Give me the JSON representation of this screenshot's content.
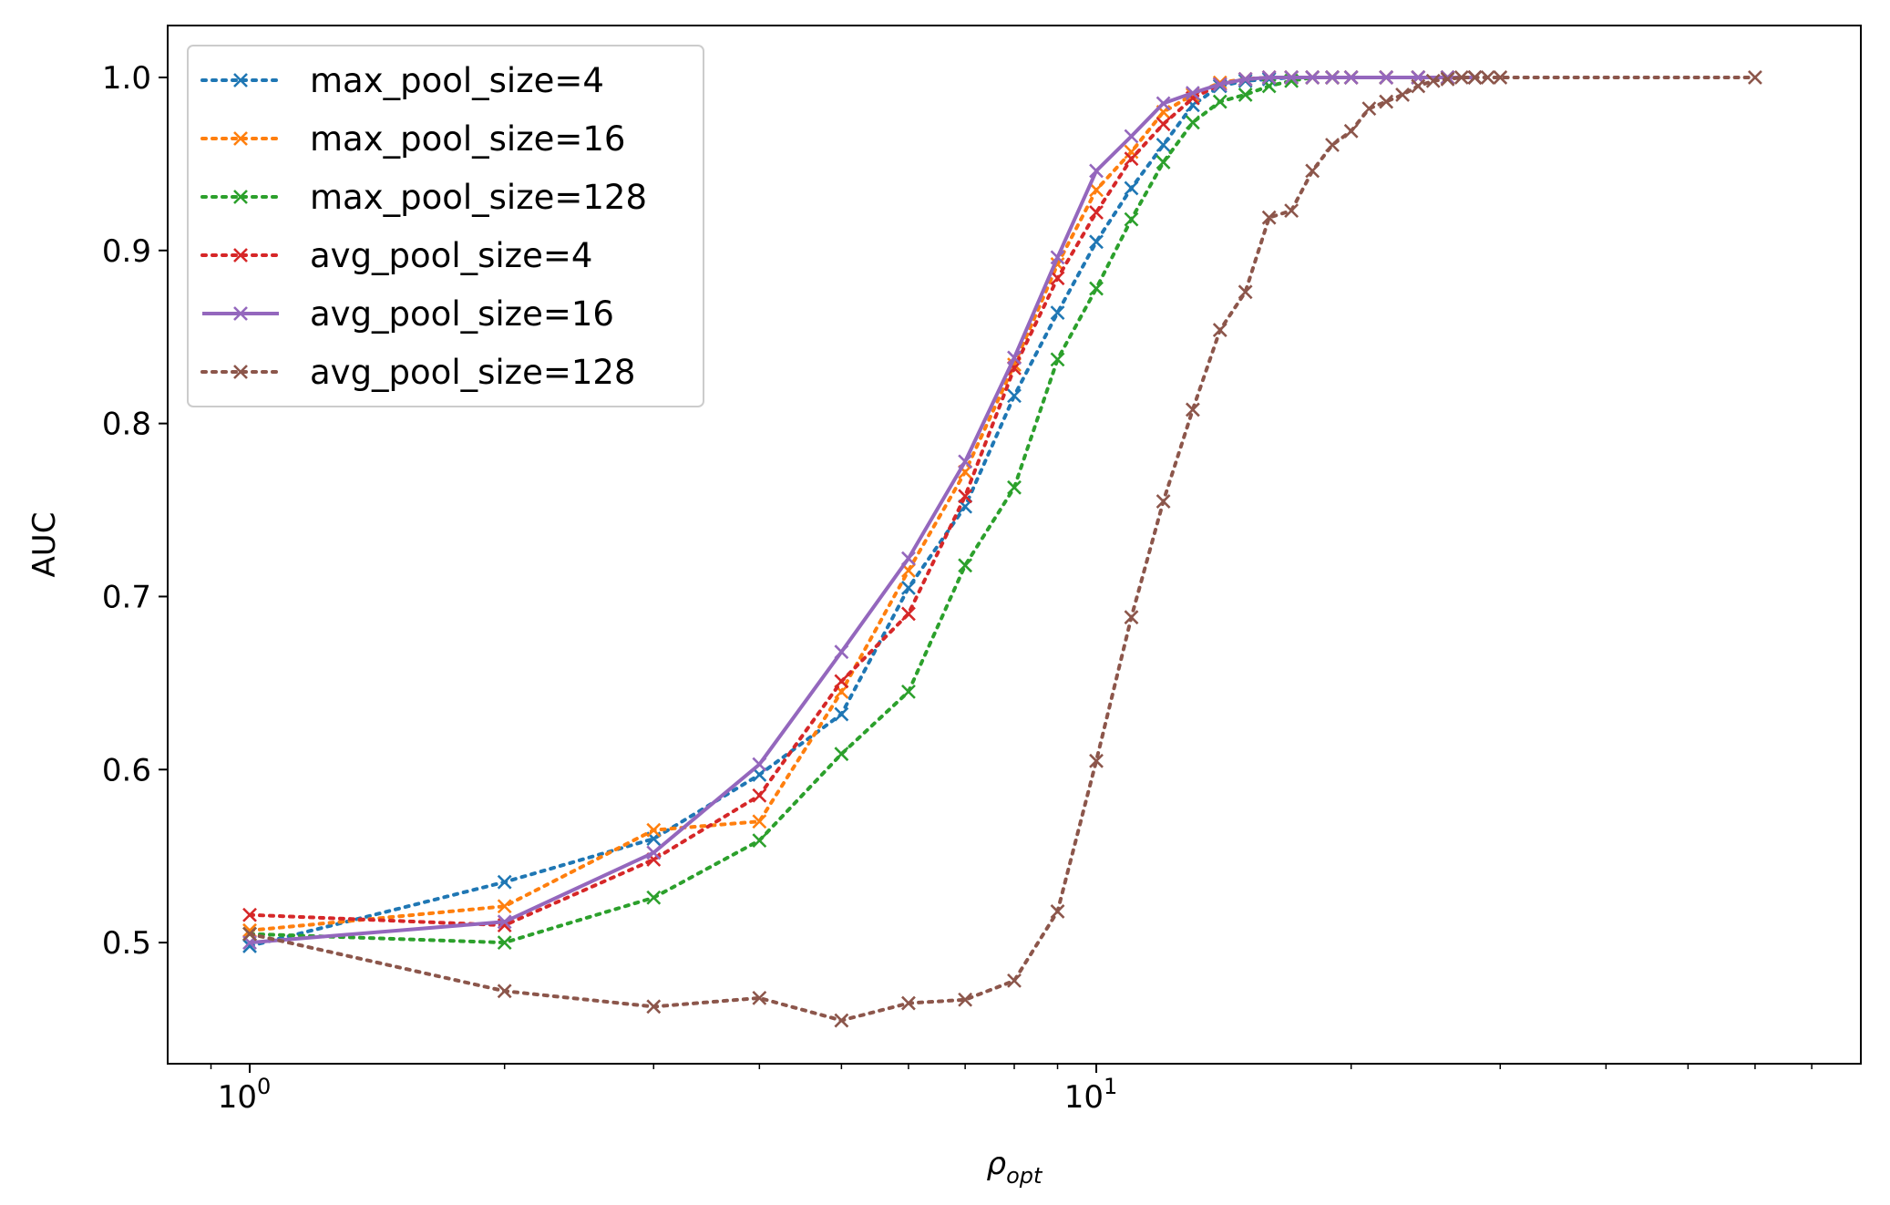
{
  "chart_data": {
    "type": "line",
    "title": "",
    "xlabel": "ρ",
    "xlabel_sub": "opt",
    "ylabel": "AUC",
    "xscale": "log",
    "xlim": [
      0.8,
      80
    ],
    "ylim": [
      0.43,
      1.03
    ],
    "x_ticks": [
      {
        "base": "10",
        "exp": "0",
        "value": 1
      },
      {
        "base": "10",
        "exp": "1",
        "value": 10
      }
    ],
    "y_ticks": [
      "0.5",
      "0.6",
      "0.7",
      "0.8",
      "0.9",
      "1.0"
    ],
    "grid": false,
    "legend_position": "upper-left",
    "series": [
      {
        "name": "max_pool_size=4",
        "color": "#1f77b4",
        "linestyle": "dotted",
        "marker": "x",
        "x": [
          1,
          2,
          3,
          4,
          5,
          6,
          7,
          8,
          9,
          10,
          11,
          12,
          13,
          14,
          15,
          16,
          17,
          18,
          19,
          20,
          22,
          24,
          26,
          28
        ],
        "y": [
          0.498,
          0.535,
          0.56,
          0.597,
          0.632,
          0.705,
          0.752,
          0.816,
          0.864,
          0.905,
          0.936,
          0.961,
          0.984,
          0.995,
          0.998,
          0.999,
          1.0,
          1.0,
          1.0,
          1.0,
          1.0,
          1.0,
          1.0,
          1.0
        ]
      },
      {
        "name": "max_pool_size=16",
        "color": "#ff7f0e",
        "linestyle": "dotted",
        "marker": "x",
        "x": [
          1,
          2,
          3,
          4,
          5,
          6,
          7,
          8,
          9,
          10,
          11,
          12,
          13,
          14,
          15,
          16,
          17,
          18,
          19,
          20,
          22,
          24,
          26,
          28
        ],
        "y": [
          0.507,
          0.521,
          0.565,
          0.57,
          0.645,
          0.715,
          0.772,
          0.834,
          0.892,
          0.935,
          0.957,
          0.98,
          0.99,
          0.997,
          0.999,
          1.0,
          1.0,
          1.0,
          1.0,
          1.0,
          1.0,
          1.0,
          1.0,
          1.0
        ]
      },
      {
        "name": "max_pool_size=128",
        "color": "#2ca02c",
        "linestyle": "dotted",
        "marker": "x",
        "x": [
          1,
          2,
          3,
          4,
          5,
          6,
          7,
          8,
          9,
          10,
          11,
          12,
          13,
          14,
          15,
          16,
          17,
          18,
          19,
          20,
          22,
          24,
          26,
          28
        ],
        "y": [
          0.505,
          0.5,
          0.526,
          0.559,
          0.609,
          0.645,
          0.718,
          0.763,
          0.837,
          0.878,
          0.918,
          0.951,
          0.974,
          0.986,
          0.99,
          0.995,
          0.998,
          1.0,
          1.0,
          1.0,
          1.0,
          1.0,
          1.0,
          1.0
        ]
      },
      {
        "name": "avg_pool_size=4",
        "color": "#d62728",
        "linestyle": "dotted",
        "marker": "x",
        "x": [
          1,
          2,
          3,
          4,
          5,
          6,
          7,
          8,
          9,
          10,
          11,
          12,
          13,
          14,
          15,
          16,
          17,
          18,
          19,
          20,
          22,
          24,
          26,
          28
        ],
        "y": [
          0.516,
          0.51,
          0.548,
          0.585,
          0.651,
          0.69,
          0.758,
          0.832,
          0.884,
          0.922,
          0.953,
          0.973,
          0.988,
          0.996,
          0.999,
          1.0,
          1.0,
          1.0,
          1.0,
          1.0,
          1.0,
          1.0,
          1.0,
          1.0
        ]
      },
      {
        "name": "avg_pool_size=16",
        "color": "#9467bd",
        "linestyle": "solid",
        "marker": "x",
        "x": [
          1,
          2,
          3,
          4,
          5,
          6,
          7,
          8,
          9,
          10,
          11,
          12,
          13,
          14,
          15,
          16,
          17,
          18,
          19,
          20,
          22,
          24,
          26,
          28
        ],
        "y": [
          0.5,
          0.512,
          0.552,
          0.603,
          0.668,
          0.722,
          0.778,
          0.838,
          0.896,
          0.946,
          0.966,
          0.985,
          0.991,
          0.996,
          0.999,
          1.0,
          1.0,
          1.0,
          1.0,
          1.0,
          1.0,
          1.0,
          1.0,
          1.0
        ]
      },
      {
        "name": "avg_pool_size=128",
        "color": "#8c564b",
        "linestyle": "dotted",
        "marker": "x",
        "x": [
          1,
          2,
          3,
          4,
          5,
          6,
          7,
          8,
          9,
          10,
          11,
          12,
          13,
          14,
          15,
          16,
          17,
          18,
          19,
          20,
          21,
          22,
          23,
          24,
          25,
          26,
          27,
          28,
          29,
          30,
          60
        ],
        "y": [
          0.505,
          0.472,
          0.463,
          0.468,
          0.455,
          0.465,
          0.467,
          0.478,
          0.518,
          0.605,
          0.688,
          0.755,
          0.808,
          0.854,
          0.876,
          0.919,
          0.923,
          0.946,
          0.961,
          0.969,
          0.982,
          0.986,
          0.99,
          0.995,
          0.998,
          0.999,
          1.0,
          1.0,
          1.0,
          1.0,
          1.0
        ]
      }
    ]
  }
}
